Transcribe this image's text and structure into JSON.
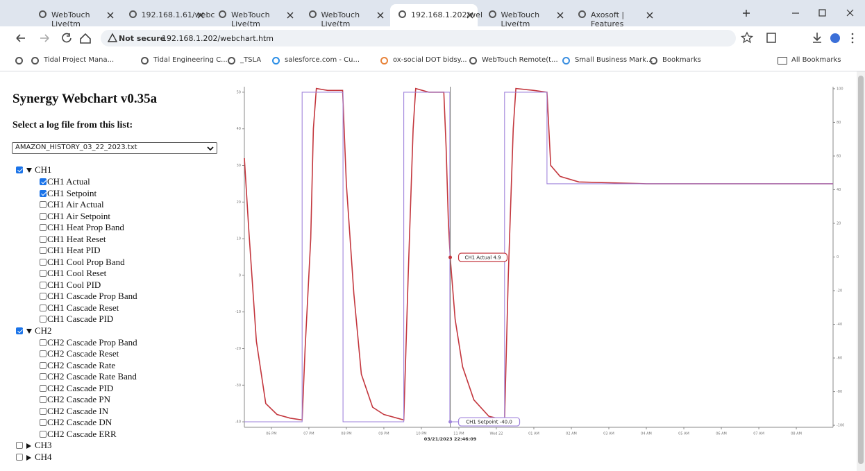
{
  "browser": {
    "tabs": [
      "WebTouch Live(tm",
      "192.168.1.61/webc",
      "WebTouch Live(tm",
      "WebTouch Live(tm",
      "192.168.1.202/wel",
      "WebTouch Live(tm",
      "Axosoft | Features"
    ],
    "active_tab": 4,
    "security": "Not secure",
    "url": "192.168.1.202/webchart.htm",
    "bookmarks": [
      "Tidal Project Mana...",
      "Tidal Engineering C...",
      "_TSLA",
      "salesforce.com - Cu...",
      "ox-social DOT bidsy...",
      "WebTouch Remote(t...",
      "Small Business Mark...",
      "Bookmarks"
    ],
    "all_bookmarks": "All Bookmarks"
  },
  "sidebar": {
    "title": "Synergy Webchart v0.35a",
    "select_label": "Select a log file from this list:",
    "selected_file": "AMAZON_HISTORY_03_22_2023.txt",
    "groups": [
      {
        "name": "CH1",
        "checked": true,
        "expanded": true,
        "items": [
          {
            "label": "CH1 Actual",
            "checked": true
          },
          {
            "label": "CH1 Setpoint",
            "checked": true
          },
          {
            "label": "CH1 Air Actual",
            "checked": false
          },
          {
            "label": "CH1 Air Setpoint",
            "checked": false
          },
          {
            "label": "CH1 Heat Prop Band",
            "checked": false
          },
          {
            "label": "CH1 Heat Reset",
            "checked": false
          },
          {
            "label": "CH1 Heat PID",
            "checked": false
          },
          {
            "label": "CH1 Cool Prop Band",
            "checked": false
          },
          {
            "label": "CH1 Cool Reset",
            "checked": false
          },
          {
            "label": "CH1 Cool PID",
            "checked": false
          },
          {
            "label": "CH1 Cascade Prop Band",
            "checked": false
          },
          {
            "label": "CH1 Cascade Reset",
            "checked": false
          },
          {
            "label": "CH1 Cascade PID",
            "checked": false
          }
        ]
      },
      {
        "name": "CH2",
        "checked": true,
        "expanded": true,
        "items": [
          {
            "label": "CH2 Cascade Prop Band",
            "checked": false
          },
          {
            "label": "CH2 Cascade Reset",
            "checked": false
          },
          {
            "label": "CH2 Cascade Rate",
            "checked": false
          },
          {
            "label": "CH2 Cascade Rate Band",
            "checked": false
          },
          {
            "label": "CH2 Cascade PID",
            "checked": false
          },
          {
            "label": "CH2 Cascade PN",
            "checked": false
          },
          {
            "label": "CH2 Cascade IN",
            "checked": false
          },
          {
            "label": "CH2 Cascade DN",
            "checked": false
          },
          {
            "label": "CH2 Cascade ERR",
            "checked": false
          }
        ]
      },
      {
        "name": "CH3",
        "checked": false,
        "expanded": false,
        "items": []
      },
      {
        "name": "CH4",
        "checked": false,
        "expanded": false,
        "items": []
      }
    ]
  },
  "chart_data": {
    "type": "line",
    "xlim": [
      -0.72,
      14.98
    ],
    "xticks": [
      {
        "value": 0,
        "label": "06 PM"
      },
      {
        "value": 1,
        "label": "07 PM"
      },
      {
        "value": 2,
        "label": "08 PM"
      },
      {
        "value": 3,
        "label": "09 PM"
      },
      {
        "value": 4,
        "label": "10 PM"
      },
      {
        "value": 5,
        "label": "11 PM"
      },
      {
        "value": 6,
        "label": "Wed 22"
      },
      {
        "value": 7,
        "label": "01 AM"
      },
      {
        "value": 8,
        "label": "02 AM"
      },
      {
        "value": 9,
        "label": "03 AM"
      },
      {
        "value": 10,
        "label": "04 AM"
      },
      {
        "value": 11,
        "label": "05 AM"
      },
      {
        "value": 12,
        "label": "06 AM"
      },
      {
        "value": 13,
        "label": "07 AM"
      },
      {
        "value": 14,
        "label": "08 AM"
      }
    ],
    "ylim": [
      -41.5,
      51.5
    ],
    "yticks": [
      -40,
      -30,
      -20,
      -10,
      0,
      10,
      20,
      30,
      40,
      50
    ],
    "y2lim": [
      -101.2,
      101.2
    ],
    "y2ticks": [
      -100,
      -80,
      -60,
      -40,
      -20,
      0,
      20,
      40,
      60,
      80,
      100
    ],
    "series": [
      {
        "name": "CH1 Actual",
        "color": "#c3363d",
        "x": [
          -0.72,
          -0.6,
          -0.4,
          -0.15,
          0.15,
          0.5,
          0.82,
          0.9,
          1.05,
          1.12,
          1.2,
          1.5,
          1.9,
          2.0,
          2.2,
          2.4,
          2.7,
          3.0,
          3.53,
          3.65,
          3.78,
          3.85,
          4.2,
          4.6,
          4.66,
          4.72,
          4.77,
          4.9,
          5.1,
          5.4,
          5.8,
          6.22,
          6.32,
          6.45,
          6.52,
          7.0,
          7.35,
          7.45,
          7.7,
          8.2,
          10,
          12,
          14.98
        ],
        "values": [
          32,
          12,
          -18,
          -35,
          -38,
          -39,
          -39.5,
          -20,
          10,
          40,
          51,
          50.5,
          50.5,
          25,
          -5,
          -27,
          -36,
          -38,
          -39.5,
          0,
          40,
          51,
          50,
          50,
          35,
          15,
          4.9,
          -12,
          -25,
          -34,
          -38.5,
          -39.5,
          0,
          40,
          51,
          50.5,
          50,
          30,
          27,
          25.5,
          25,
          25,
          25
        ]
      },
      {
        "name": "CH1 Setpoint",
        "color": "#a084dc",
        "x": [
          -0.72,
          0.82,
          0.82,
          1.91,
          1.91,
          3.53,
          3.53,
          4.76,
          4.76,
          6.22,
          6.22,
          7.35,
          7.35,
          14.98
        ],
        "values": [
          -40,
          -40,
          50,
          50,
          -40,
          -40,
          50,
          50,
          -40,
          -40,
          50,
          50,
          25,
          25
        ]
      }
    ],
    "hover": {
      "x": 4.77,
      "time_label": "03/21/2023 22:46:09",
      "tooltips": [
        "CH1 Actual 4.9",
        "CH1 Setpoint -40.0"
      ]
    }
  }
}
